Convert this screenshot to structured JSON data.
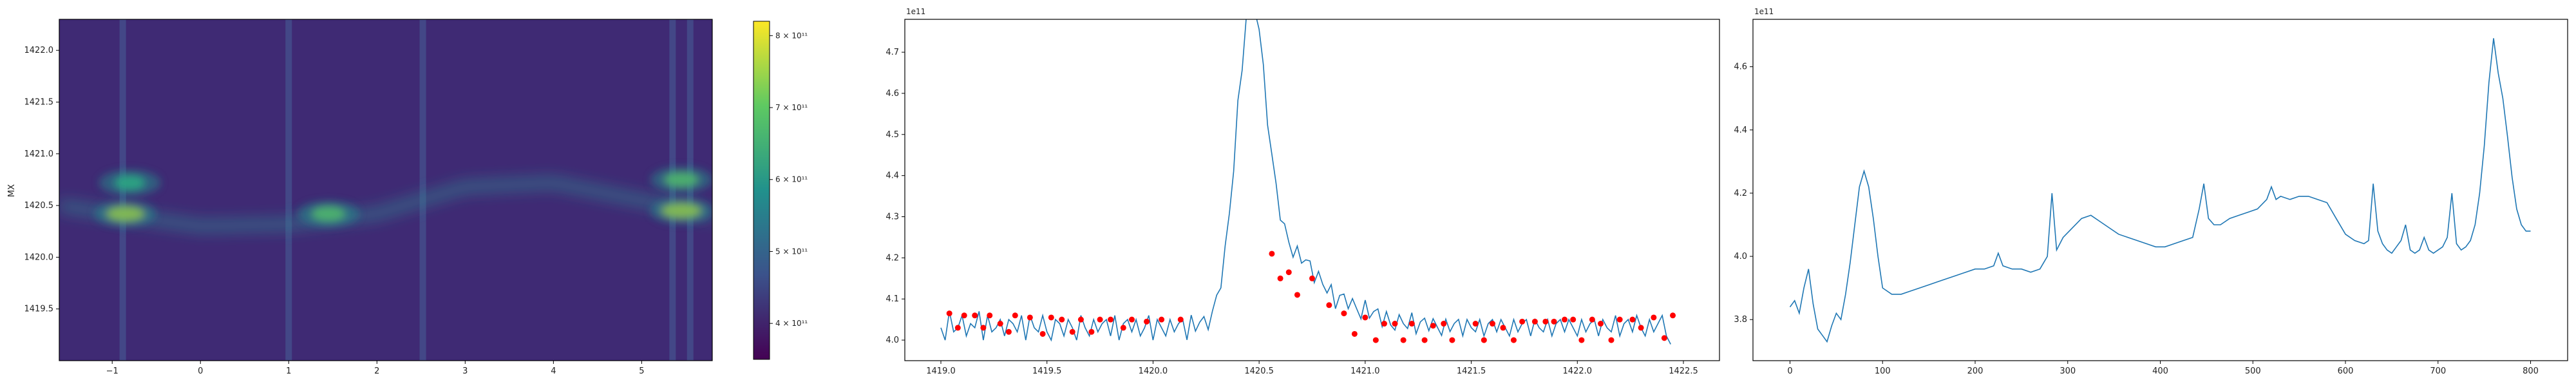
{
  "chart_data": [
    {
      "type": "heatmap",
      "title": "",
      "xlabel": "",
      "ylabel": "MX",
      "xlim": [
        -1.6,
        5.8
      ],
      "ylim": [
        1419.0,
        1422.3
      ],
      "xticks": [
        -1,
        0,
        1,
        2,
        3,
        4,
        5
      ],
      "yticks": [
        1419.5,
        1420.0,
        1420.5,
        1421.0,
        1421.5,
        1422.0
      ],
      "colorbar": {
        "min": 350000000000,
        "max": 820000000000,
        "ticks": [
          400000000000,
          500000000000,
          600000000000,
          700000000000,
          800000000000
        ],
        "tick_labels": [
          "4 × 10¹¹",
          "5 × 10¹¹",
          "6 × 10¹¹",
          "7 × 10¹¹",
          "8 × 10¹¹"
        ],
        "colormap": "viridis"
      },
      "vertical_stripes_x": [
        -0.88,
        1.0,
        2.52,
        5.35,
        5.55
      ],
      "ridge": {
        "x": [
          -1.6,
          -1.0,
          0.0,
          1.0,
          2.0,
          3.0,
          4.0,
          5.0,
          5.8
        ],
        "y": [
          1420.5,
          1420.42,
          1420.3,
          1420.32,
          1420.42,
          1420.68,
          1420.72,
          1420.55,
          1420.4
        ]
      },
      "hotspots": [
        {
          "x": -0.85,
          "y": 1420.42,
          "intensity": 0.9
        },
        {
          "x": -0.8,
          "y": 1420.72,
          "intensity": 0.55
        },
        {
          "x": 1.45,
          "y": 1420.42,
          "intensity": 0.7
        },
        {
          "x": 5.45,
          "y": 1420.45,
          "intensity": 1.0
        },
        {
          "x": 5.45,
          "y": 1420.75,
          "intensity": 0.75
        }
      ]
    },
    {
      "type": "line",
      "title": "",
      "offset_text": "1e11",
      "xlabel": "",
      "ylabel": "",
      "xlim": [
        1418.83,
        1422.67
      ],
      "ylim": [
        3.95,
        4.78
      ],
      "xticks": [
        1419.0,
        1419.5,
        1420.0,
        1420.5,
        1421.0,
        1421.5,
        1422.0,
        1422.5
      ],
      "xtick_labels": [
        "1419.0",
        "1419.5",
        "1420.0",
        "1420.5",
        "1421.0",
        "1421.5",
        "1422.0",
        "1422.5"
      ],
      "yticks": [
        4.0,
        4.1,
        4.2,
        4.3,
        4.4,
        4.5,
        4.6,
        4.7
      ],
      "ytick_labels": [
        "4.0",
        "4.1",
        "4.2",
        "4.3",
        "4.4",
        "4.5",
        "4.6",
        "4.7"
      ],
      "line_color": "#1f77b4",
      "marker_color": "#ff0000",
      "x_start": 1419.0,
      "x_step": 0.02,
      "baseline": [
        4.03,
        4.0,
        4.07,
        4.02,
        4.03,
        4.06,
        4.01,
        4.04,
        4.03,
        4.07,
        4.0,
        4.06,
        4.02,
        4.03,
        4.05,
        4.01,
        4.05,
        4.04,
        4.02,
        4.06,
        4.0,
        4.06,
        4.03,
        4.02,
        4.06,
        4.02,
        4.0,
        4.05,
        4.04,
        4.01,
        4.05,
        4.03,
        4.0,
        4.06,
        4.03,
        4.01,
        4.05,
        4.02,
        4.04,
        4.05,
        4.01,
        4.06,
        4.0,
        4.04,
        4.05,
        4.02,
        4.05,
        4.01,
        4.03,
        4.06,
        4.0,
        4.05,
        4.03,
        4.01,
        4.05,
        4.02,
        4.04,
        4.05,
        4.0,
        4.06,
        4.02,
        4.04,
        4.05,
        4.01,
        4.04,
        4.05,
        4.02,
        4.05,
        4.03,
        4.01,
        4.05,
        4.0,
        4.04,
        4.05,
        4.02,
        4.04,
        4.05,
        4.01,
        4.04,
        4.05,
        4.02,
        4.05,
        4.03,
        4.01,
        4.05,
        4.02,
        4.04,
        4.05,
        4.01,
        4.05,
        4.03,
        4.02,
        4.05,
        4.0,
        4.04,
        4.05,
        4.02,
        4.05,
        4.03,
        4.01,
        4.06,
        4.02,
        4.04,
        4.05,
        4.01,
        4.05,
        4.02,
        4.01,
        4.05,
        4.03,
        4.02,
        4.06,
        4.01,
        4.04,
        4.05,
        4.02,
        4.05,
        4.03,
        4.01,
        4.05,
        4.02,
        4.04,
        4.05,
        4.01,
        4.05,
        4.03,
        4.02,
        4.05,
        4.01,
        4.04,
        4.05,
        4.02,
        4.05,
        4.03,
        4.01,
        4.05,
        4.02,
        4.04,
        4.05,
        4.01,
        4.05,
        4.03,
        4.02,
        4.05,
        4.01,
        4.04,
        4.05,
        4.02,
        4.05,
        4.03,
        4.01,
        4.05,
        4.02,
        4.04,
        4.05,
        4.01,
        4.05,
        4.03,
        4.02,
        4.06,
        4.01,
        4.04,
        4.05,
        4.02,
        4.06,
        4.03,
        4.01,
        4.05,
        4.02,
        4.04,
        4.06,
        4.01,
        3.99
      ],
      "peak": {
        "center": 1420.46,
        "height": 0.72,
        "width": 0.07,
        "tail_center": 1420.62,
        "tail_height": 0.14,
        "tail_width": 0.12,
        "decay_center": 1420.8,
        "decay_height": 0.06,
        "decay_width": 0.2
      },
      "peak_markers": [
        {
          "x": 1419.04,
          "y": 4.065
        },
        {
          "x": 1419.08,
          "y": 4.03
        },
        {
          "x": 1419.11,
          "y": 4.06
        },
        {
          "x": 1419.16,
          "y": 4.06
        },
        {
          "x": 1419.2,
          "y": 4.03
        },
        {
          "x": 1419.23,
          "y": 4.06
        },
        {
          "x": 1419.28,
          "y": 4.04
        },
        {
          "x": 1419.32,
          "y": 4.02
        },
        {
          "x": 1419.35,
          "y": 4.06
        },
        {
          "x": 1419.42,
          "y": 4.055
        },
        {
          "x": 1419.48,
          "y": 4.015
        },
        {
          "x": 1419.52,
          "y": 4.055
        },
        {
          "x": 1419.57,
          "y": 4.05
        },
        {
          "x": 1419.62,
          "y": 4.02
        },
        {
          "x": 1419.66,
          "y": 4.05
        },
        {
          "x": 1419.71,
          "y": 4.02
        },
        {
          "x": 1419.75,
          "y": 4.05
        },
        {
          "x": 1419.8,
          "y": 4.05
        },
        {
          "x": 1419.86,
          "y": 4.03
        },
        {
          "x": 1419.9,
          "y": 4.05
        },
        {
          "x": 1419.97,
          "y": 4.045
        },
        {
          "x": 1420.04,
          "y": 4.05
        },
        {
          "x": 1420.13,
          "y": 4.05
        },
        {
          "x": 1420.56,
          "y": 4.21
        },
        {
          "x": 1420.6,
          "y": 4.15
        },
        {
          "x": 1420.64,
          "y": 4.165
        },
        {
          "x": 1420.68,
          "y": 4.11
        },
        {
          "x": 1420.75,
          "y": 4.15
        },
        {
          "x": 1420.83,
          "y": 4.085
        },
        {
          "x": 1420.9,
          "y": 4.065
        },
        {
          "x": 1420.95,
          "y": 4.015
        },
        {
          "x": 1421.0,
          "y": 4.055
        },
        {
          "x": 1421.05,
          "y": 4.0
        },
        {
          "x": 1421.09,
          "y": 4.04
        },
        {
          "x": 1421.14,
          "y": 4.04
        },
        {
          "x": 1421.18,
          "y": 4.0
        },
        {
          "x": 1421.22,
          "y": 4.04
        },
        {
          "x": 1421.28,
          "y": 4.0
        },
        {
          "x": 1421.32,
          "y": 4.035
        },
        {
          "x": 1421.37,
          "y": 4.04
        },
        {
          "x": 1421.41,
          "y": 4.0
        },
        {
          "x": 1421.52,
          "y": 4.04
        },
        {
          "x": 1421.56,
          "y": 4.0
        },
        {
          "x": 1421.6,
          "y": 4.04
        },
        {
          "x": 1421.65,
          "y": 4.03
        },
        {
          "x": 1421.7,
          "y": 4.0
        },
        {
          "x": 1421.74,
          "y": 4.045
        },
        {
          "x": 1421.8,
          "y": 4.045
        },
        {
          "x": 1421.85,
          "y": 4.045
        },
        {
          "x": 1421.89,
          "y": 4.045
        },
        {
          "x": 1421.94,
          "y": 4.05
        },
        {
          "x": 1421.98,
          "y": 4.05
        },
        {
          "x": 1422.02,
          "y": 4.0
        },
        {
          "x": 1422.07,
          "y": 4.05
        },
        {
          "x": 1422.11,
          "y": 4.04
        },
        {
          "x": 1422.16,
          "y": 4.0
        },
        {
          "x": 1422.2,
          "y": 4.05
        },
        {
          "x": 1422.26,
          "y": 4.05
        },
        {
          "x": 1422.3,
          "y": 4.03
        },
        {
          "x": 1422.36,
          "y": 4.055
        },
        {
          "x": 1422.41,
          "y": 4.005
        },
        {
          "x": 1422.45,
          "y": 4.06
        }
      ]
    },
    {
      "type": "line",
      "title": "",
      "offset_text": "1e11",
      "xlabel": "",
      "ylabel": "",
      "xlim": [
        -40,
        840
      ],
      "ylim": [
        3.67,
        4.75
      ],
      "xticks": [
        0,
        100,
        200,
        300,
        400,
        500,
        600,
        700,
        800
      ],
      "xtick_labels": [
        "0",
        "100",
        "200",
        "300",
        "400",
        "500",
        "600",
        "700",
        "800"
      ],
      "yticks": [
        3.8,
        4.0,
        4.2,
        4.4,
        4.6
      ],
      "ytick_labels": [
        "3.8",
        "4.0",
        "4.2",
        "4.4",
        "4.6"
      ],
      "line_color": "#1f77b4",
      "x": [
        0,
        5,
        10,
        15,
        20,
        25,
        30,
        35,
        40,
        45,
        50,
        55,
        60,
        65,
        70,
        75,
        80,
        85,
        90,
        95,
        100,
        110,
        120,
        130,
        140,
        150,
        160,
        170,
        180,
        190,
        200,
        210,
        220,
        225,
        230,
        240,
        250,
        260,
        270,
        278,
        283,
        288,
        295,
        305,
        315,
        325,
        335,
        345,
        355,
        365,
        375,
        385,
        395,
        405,
        415,
        425,
        435,
        442,
        447,
        452,
        458,
        465,
        475,
        485,
        495,
        505,
        515,
        520,
        525,
        530,
        540,
        550,
        560,
        570,
        580,
        590,
        600,
        610,
        620,
        625,
        630,
        635,
        640,
        645,
        650,
        655,
        660,
        665,
        670,
        675,
        680,
        685,
        690,
        695,
        700,
        705,
        710,
        715,
        720,
        725,
        730,
        735,
        740,
        745,
        750,
        755,
        760,
        765,
        770,
        775,
        780,
        785,
        790,
        795,
        800
      ],
      "y": [
        3.84,
        3.86,
        3.82,
        3.9,
        3.96,
        3.85,
        3.77,
        3.75,
        3.73,
        3.78,
        3.82,
        3.8,
        3.88,
        3.98,
        4.1,
        4.22,
        4.27,
        4.22,
        4.12,
        4.0,
        3.9,
        3.88,
        3.88,
        3.89,
        3.9,
        3.91,
        3.92,
        3.93,
        3.94,
        3.95,
        3.96,
        3.96,
        3.97,
        4.01,
        3.97,
        3.96,
        3.96,
        3.95,
        3.96,
        4.0,
        4.2,
        4.02,
        4.06,
        4.09,
        4.12,
        4.13,
        4.11,
        4.09,
        4.07,
        4.06,
        4.05,
        4.04,
        4.03,
        4.03,
        4.04,
        4.05,
        4.06,
        4.15,
        4.23,
        4.12,
        4.1,
        4.1,
        4.12,
        4.13,
        4.14,
        4.15,
        4.18,
        4.22,
        4.18,
        4.19,
        4.18,
        4.19,
        4.19,
        4.18,
        4.17,
        4.12,
        4.07,
        4.05,
        4.04,
        4.05,
        4.23,
        4.08,
        4.04,
        4.02,
        4.01,
        4.03,
        4.05,
        4.1,
        4.02,
        4.01,
        4.02,
        4.06,
        4.02,
        4.01,
        4.02,
        4.03,
        4.06,
        4.2,
        4.04,
        4.02,
        4.03,
        4.05,
        4.1,
        4.2,
        4.35,
        4.55,
        4.69,
        4.58,
        4.5,
        4.38,
        4.25,
        4.15,
        4.1,
        4.08,
        4.08
      ]
    }
  ]
}
